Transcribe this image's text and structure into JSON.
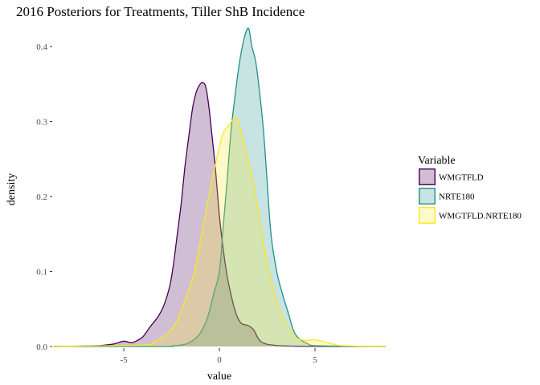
{
  "chart_data": {
    "type": "area",
    "title": "2016 Posteriors for Treatments, Tiller ShB Incidence",
    "xlabel": "value",
    "ylabel": "density",
    "xlim": [
      -8.7,
      8.7
    ],
    "ylim": [
      0,
      0.43
    ],
    "x_ticks": [
      -5,
      0,
      5
    ],
    "x_tick_labels": [
      "-5",
      "0",
      "5"
    ],
    "y_ticks": [
      0,
      0.1,
      0.2,
      0.3,
      0.4
    ],
    "y_tick_labels": [
      "0.0",
      "0.1",
      "0.2",
      "0.3",
      "0.4"
    ],
    "grid": false,
    "legend": {
      "title": "Variable",
      "position": "right"
    },
    "series": [
      {
        "name": "WMGTFLD",
        "stroke": "#440154",
        "fill": "#440154",
        "fill_opacity": 0.25,
        "x": [
          -8.7,
          -6.5,
          -5.6,
          -5.0,
          -4.6,
          -4.3,
          -4.0,
          -3.6,
          -3.2,
          -2.9,
          -2.6,
          -2.4,
          -2.2,
          -2.0,
          -1.8,
          -1.6,
          -1.4,
          -1.2,
          -1.0,
          -0.85,
          -0.7,
          -0.55,
          -0.4,
          -0.2,
          0.0,
          0.2,
          0.4,
          0.6,
          0.8,
          1.0,
          1.2,
          1.5,
          1.8,
          2.0,
          2.2,
          2.5,
          2.8,
          3.2,
          3.8,
          5.0,
          8.7
        ],
        "y": [
          0.0,
          0.001,
          0.003,
          0.007,
          0.005,
          0.008,
          0.013,
          0.027,
          0.04,
          0.055,
          0.08,
          0.11,
          0.15,
          0.19,
          0.24,
          0.28,
          0.318,
          0.34,
          0.35,
          0.352,
          0.345,
          0.32,
          0.285,
          0.235,
          0.175,
          0.13,
          0.095,
          0.07,
          0.05,
          0.036,
          0.03,
          0.028,
          0.022,
          0.012,
          0.006,
          0.003,
          0.002,
          0.001,
          0.0005,
          0.0002,
          0.0
        ]
      },
      {
        "name": "NRTE180",
        "stroke": "#21908C",
        "fill": "#21908C",
        "fill_opacity": 0.25,
        "x": [
          -8.7,
          -3.0,
          -2.4,
          -1.8,
          -1.4,
          -1.0,
          -0.6,
          -0.3,
          0.0,
          0.2,
          0.4,
          0.6,
          0.8,
          1.0,
          1.2,
          1.4,
          1.55,
          1.7,
          1.9,
          2.1,
          2.3,
          2.5,
          2.7,
          3.0,
          3.3,
          3.6,
          3.9,
          4.2,
          4.6,
          5.2,
          8.7
        ],
        "y": [
          0.0,
          0.0,
          0.001,
          0.003,
          0.008,
          0.018,
          0.04,
          0.07,
          0.1,
          0.16,
          0.22,
          0.285,
          0.33,
          0.37,
          0.4,
          0.42,
          0.423,
          0.4,
          0.38,
          0.34,
          0.29,
          0.22,
          0.15,
          0.1,
          0.07,
          0.045,
          0.02,
          0.01,
          0.004,
          0.001,
          0.0
        ]
      },
      {
        "name": "WMGTFLD.NRTE180",
        "stroke": "#FDE725",
        "fill": "#FDE725",
        "fill_opacity": 0.25,
        "x": [
          -8.7,
          -4.0,
          -3.5,
          -3.0,
          -2.6,
          -2.2,
          -1.9,
          -1.6,
          -1.3,
          -1.0,
          -0.7,
          -0.4,
          -0.1,
          0.2,
          0.5,
          0.8,
          1.0,
          1.2,
          1.5,
          1.8,
          2.1,
          2.4,
          2.7,
          3.0,
          3.3,
          3.6,
          4.0,
          4.5,
          5.0,
          5.5,
          6.0,
          6.5,
          8.7
        ],
        "y": [
          0.0,
          0.002,
          0.005,
          0.012,
          0.02,
          0.035,
          0.055,
          0.075,
          0.1,
          0.14,
          0.18,
          0.22,
          0.255,
          0.285,
          0.295,
          0.305,
          0.3,
          0.28,
          0.25,
          0.215,
          0.17,
          0.125,
          0.09,
          0.06,
          0.04,
          0.025,
          0.012,
          0.008,
          0.009,
          0.006,
          0.003,
          0.001,
          0.0
        ]
      }
    ]
  }
}
